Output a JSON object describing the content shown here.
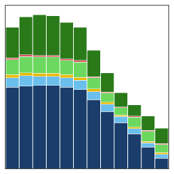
{
  "chart_data": {
    "type": "bar",
    "stacked": true,
    "categories": [
      null,
      null,
      null,
      null,
      null,
      null,
      null,
      null,
      null,
      null,
      null,
      null
    ],
    "series": [
      {
        "color": "#1a3d6b",
        "values": [
          160,
          162,
          163,
          163,
          160,
          155,
          135,
          112,
          90,
          68,
          42,
          20
        ]
      },
      {
        "color": "#6bbfed",
        "values": [
          18,
          20,
          18,
          18,
          18,
          18,
          16,
          14,
          12,
          10,
          8,
          8
        ]
      },
      {
        "color": "#e8b800",
        "values": [
          6,
          6,
          6,
          6,
          6,
          6,
          5,
          4,
          3,
          3,
          3,
          3
        ]
      },
      {
        "color": "#6dd860",
        "values": [
          30,
          32,
          32,
          32,
          28,
          30,
          22,
          18,
          14,
          20,
          20,
          16
        ]
      },
      {
        "color": "#e05060",
        "values": [
          3,
          3,
          3,
          3,
          3,
          3,
          2,
          2,
          2,
          2,
          2,
          2
        ]
      },
      {
        "color": "#2a7a1a",
        "values": [
          60,
          75,
          80,
          78,
          72,
          65,
          52,
          38,
          28,
          22,
          28,
          30
        ]
      }
    ],
    "ylim": [
      0,
      320
    ],
    "grid": false,
    "tick_labels": false
  }
}
